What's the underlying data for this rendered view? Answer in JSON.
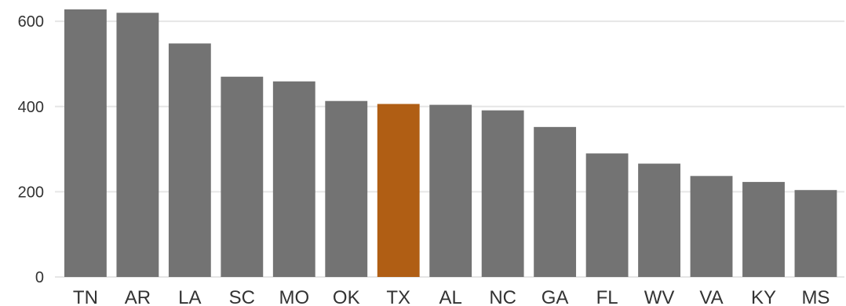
{
  "chart_data": {
    "type": "bar",
    "categories": [
      "TN",
      "AR",
      "LA",
      "SC",
      "MO",
      "OK",
      "TX",
      "AL",
      "NC",
      "GA",
      "FL",
      "WV",
      "VA",
      "KY",
      "MS"
    ],
    "values": [
      628,
      620,
      548,
      470,
      459,
      413,
      406,
      404,
      391,
      352,
      290,
      266,
      237,
      223,
      204
    ],
    "highlight": "TX",
    "ylim": [
      0,
      650
    ],
    "yticks": [
      0,
      200,
      400,
      600
    ],
    "grid": true,
    "title": "",
    "xlabel": "",
    "ylabel": "",
    "colors": {
      "bar": "#737373",
      "highlight": "#b05e14"
    }
  }
}
